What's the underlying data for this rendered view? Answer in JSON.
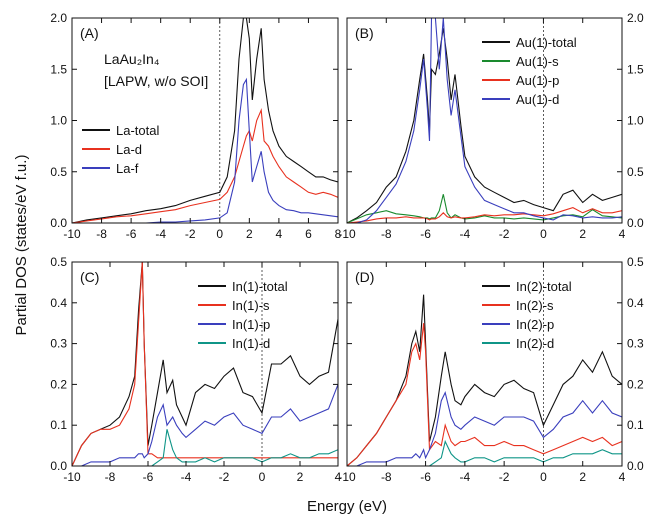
{
  "figure": {
    "ylabel": "Partial DOS (states/eV f.u.)",
    "xlabel": "Energy (eV)"
  },
  "chart_data": [
    {
      "type": "line",
      "panel_label": "(A)",
      "annotation_lines": [
        "LaAu₂In₄",
        "[LAPW, w/o SOI]"
      ],
      "xlim": [
        -10,
        8
      ],
      "ylim": [
        0,
        2.0
      ],
      "xticks": [
        "-10",
        "-8",
        "-6",
        "-4",
        "-2",
        "0",
        "2",
        "4",
        "6",
        "8"
      ],
      "yticks": [
        "0.0",
        "0.5",
        "1.0",
        "1.5",
        "2.0"
      ],
      "tick_side": "left",
      "legend_position": "middle-left",
      "fermi_level": 0,
      "x": [
        -10,
        -9,
        -8,
        -7,
        -6,
        -5,
        -4,
        -3,
        -2,
        -1,
        0,
        0.5,
        1,
        1.3,
        1.6,
        1.8,
        2,
        2.2,
        2.5,
        2.8,
        3,
        3.3,
        3.6,
        4,
        4.5,
        5,
        5.5,
        6,
        6.5,
        7,
        7.5,
        8
      ],
      "series": [
        {
          "name": "La-total",
          "color": "#111111",
          "values": [
            0.0,
            0.03,
            0.05,
            0.07,
            0.09,
            0.12,
            0.14,
            0.17,
            0.22,
            0.26,
            0.3,
            0.45,
            0.9,
            1.6,
            2.1,
            2.3,
            1.8,
            1.2,
            1.6,
            1.9,
            1.4,
            1.1,
            0.9,
            0.75,
            0.65,
            0.6,
            0.55,
            0.5,
            0.45,
            0.45,
            0.42,
            0.4
          ]
        },
        {
          "name": "La-d",
          "color": "#e8311f",
          "values": [
            0.0,
            0.02,
            0.04,
            0.06,
            0.07,
            0.09,
            0.11,
            0.13,
            0.17,
            0.2,
            0.23,
            0.3,
            0.45,
            0.6,
            0.75,
            0.85,
            0.9,
            0.8,
            1.0,
            1.1,
            0.8,
            0.75,
            0.65,
            0.55,
            0.45,
            0.4,
            0.35,
            0.3,
            0.28,
            0.3,
            0.28,
            0.25
          ]
        },
        {
          "name": "La-f",
          "color": "#3a3fbd",
          "values": [
            0.0,
            0.0,
            0.0,
            0.0,
            0.0,
            0.0,
            0.01,
            0.01,
            0.02,
            0.03,
            0.05,
            0.1,
            0.4,
            1.0,
            1.35,
            1.4,
            0.9,
            0.4,
            0.55,
            0.7,
            0.5,
            0.3,
            0.22,
            0.17,
            0.13,
            0.12,
            0.1,
            0.1,
            0.09,
            0.08,
            0.07,
            0.06
          ]
        }
      ]
    },
    {
      "type": "line",
      "panel_label": "(B)",
      "xlim": [
        -10,
        4
      ],
      "ylim": [
        0,
        2.0
      ],
      "xticks": [
        "-10",
        "-8",
        "-6",
        "-4",
        "-2",
        "0",
        "2",
        "4"
      ],
      "yticks": [
        "0.0",
        "0.5",
        "1.0",
        "1.5",
        "2.0"
      ],
      "tick_side": "right",
      "legend_position": "top-right",
      "fermi_level": 0,
      "x": [
        -10,
        -9.5,
        -9,
        -8.5,
        -8,
        -7.5,
        -7,
        -6.6,
        -6.3,
        -6.1,
        -5.9,
        -5.8,
        -5.7,
        -5.5,
        -5.3,
        -5.1,
        -4.9,
        -4.7,
        -4.5,
        -4.2,
        -4,
        -3.5,
        -3,
        -2.5,
        -2,
        -1.5,
        -1,
        -0.5,
        0,
        0.5,
        1,
        1.5,
        2,
        2.5,
        3,
        3.5,
        4
      ],
      "series": [
        {
          "name": "Au(1)-total",
          "color": "#111111",
          "values": [
            0.0,
            0.05,
            0.12,
            0.2,
            0.35,
            0.45,
            0.7,
            1.0,
            1.4,
            1.65,
            1.2,
            0.9,
            1.5,
            1.45,
            1.65,
            1.9,
            1.6,
            1.2,
            1.45,
            0.95,
            0.65,
            0.45,
            0.35,
            0.3,
            0.25,
            0.2,
            0.22,
            0.18,
            0.15,
            0.12,
            0.28,
            0.32,
            0.2,
            0.28,
            0.22,
            0.25,
            0.28
          ]
        },
        {
          "name": "Au(1)-s",
          "color": "#1a8a2e",
          "values": [
            0.0,
            0.04,
            0.08,
            0.1,
            0.12,
            0.09,
            0.08,
            0.07,
            0.06,
            0.05,
            0.05,
            0.04,
            0.05,
            0.05,
            0.12,
            0.28,
            0.1,
            0.05,
            0.08,
            0.05,
            0.04,
            0.05,
            0.07,
            0.05,
            0.05,
            0.04,
            0.05,
            0.04,
            0.03,
            0.05,
            0.07,
            0.08,
            0.06,
            0.13,
            0.07,
            0.06,
            0.05
          ]
        },
        {
          "name": "Au(1)-p",
          "color": "#e8311f",
          "values": [
            0.0,
            0.01,
            0.02,
            0.04,
            0.05,
            0.05,
            0.06,
            0.05,
            0.05,
            0.05,
            0.04,
            0.03,
            0.04,
            0.04,
            0.06,
            0.1,
            0.06,
            0.05,
            0.06,
            0.05,
            0.05,
            0.06,
            0.08,
            0.07,
            0.08,
            0.08,
            0.09,
            0.08,
            0.07,
            0.09,
            0.12,
            0.15,
            0.1,
            0.14,
            0.1,
            0.1,
            0.12
          ]
        },
        {
          "name": "Au(1)-d",
          "color": "#3a3fbd",
          "values": [
            0.0,
            0.0,
            0.03,
            0.12,
            0.25,
            0.38,
            0.6,
            0.9,
            1.3,
            1.6,
            1.1,
            0.8,
            2.0,
            2.0,
            1.5,
            2.0,
            1.4,
            1.05,
            1.3,
            0.85,
            0.55,
            0.35,
            0.22,
            0.18,
            0.14,
            0.1,
            0.1,
            0.07,
            0.05,
            0.03,
            0.08,
            0.07,
            0.05,
            0.06,
            0.05,
            0.05,
            0.06
          ]
        }
      ]
    },
    {
      "type": "line",
      "panel_label": "(C)",
      "xlim": [
        -10,
        4
      ],
      "ylim": [
        0,
        0.5
      ],
      "xticks": [
        "-10",
        "-8",
        "-6",
        "-4",
        "-2",
        "0",
        "2",
        "4"
      ],
      "yticks": [
        "0.0",
        "0.1",
        "0.2",
        "0.3",
        "0.4",
        "0.5"
      ],
      "tick_side": "left",
      "legend_position": "top-right",
      "fermi_level": 0,
      "x": [
        -10,
        -9.5,
        -9,
        -8.5,
        -8,
        -7.5,
        -7,
        -6.7,
        -6.5,
        -6.3,
        -6.2,
        -6,
        -5.8,
        -5.5,
        -5.2,
        -5,
        -4.7,
        -4.5,
        -4.2,
        -4,
        -3.5,
        -3,
        -2.5,
        -2,
        -1.5,
        -1,
        -0.5,
        0,
        0.5,
        1,
        1.5,
        2,
        2.5,
        3,
        3.5,
        4
      ],
      "series": [
        {
          "name": "In(1)-total",
          "color": "#111111",
          "values": [
            0.0,
            0.05,
            0.08,
            0.09,
            0.1,
            0.12,
            0.17,
            0.22,
            0.38,
            0.5,
            0.3,
            0.05,
            0.1,
            0.18,
            0.26,
            0.18,
            0.21,
            0.15,
            0.12,
            0.1,
            0.18,
            0.2,
            0.19,
            0.22,
            0.24,
            0.18,
            0.17,
            0.13,
            0.25,
            0.25,
            0.27,
            0.22,
            0.2,
            0.22,
            0.23,
            0.36
          ]
        },
        {
          "name": "In(1)-s",
          "color": "#e8311f",
          "values": [
            0.0,
            0.05,
            0.08,
            0.09,
            0.09,
            0.1,
            0.14,
            0.2,
            0.35,
            0.5,
            0.3,
            0.03,
            0.03,
            0.02,
            0.02,
            0.02,
            0.02,
            0.02,
            0.02,
            0.02,
            0.02,
            0.02,
            0.02,
            0.02,
            0.02,
            0.02,
            0.02,
            0.02,
            0.02,
            0.02,
            0.02,
            0.02,
            0.02,
            0.02,
            0.02,
            0.02
          ]
        },
        {
          "name": "In(1)-p",
          "color": "#3a3fbd",
          "values": [
            0.0,
            0.0,
            0.01,
            0.01,
            0.01,
            0.02,
            0.02,
            0.02,
            0.03,
            0.03,
            0.02,
            0.03,
            0.06,
            0.12,
            0.15,
            0.1,
            0.12,
            0.1,
            0.08,
            0.07,
            0.09,
            0.11,
            0.1,
            0.12,
            0.13,
            0.1,
            0.09,
            0.08,
            0.12,
            0.12,
            0.14,
            0.11,
            0.12,
            0.13,
            0.14,
            0.2
          ]
        },
        {
          "name": "In(1)-d",
          "color": "#0f9587",
          "values": [
            0.0,
            0.0,
            0.0,
            0.0,
            0.0,
            0.0,
            0.0,
            0.0,
            0.0,
            0.0,
            0.0,
            0.0,
            0.0,
            0.01,
            0.02,
            0.09,
            0.04,
            0.02,
            0.01,
            0.01,
            0.01,
            0.02,
            0.01,
            0.02,
            0.02,
            0.02,
            0.02,
            0.01,
            0.02,
            0.02,
            0.03,
            0.02,
            0.02,
            0.03,
            0.03,
            0.04
          ]
        }
      ]
    },
    {
      "type": "line",
      "panel_label": "(D)",
      "xlim": [
        -10,
        4
      ],
      "ylim": [
        0,
        0.5
      ],
      "xticks": [
        "-10",
        "-8",
        "-6",
        "-4",
        "-2",
        "0",
        "2",
        "4"
      ],
      "yticks": [
        "0.0",
        "0.1",
        "0.2",
        "0.3",
        "0.4",
        "0.5"
      ],
      "tick_side": "right",
      "legend_position": "top-right",
      "fermi_level": 0,
      "x": [
        -10,
        -9.5,
        -9,
        -8.5,
        -8,
        -7.5,
        -7,
        -6.7,
        -6.5,
        -6.3,
        -6.1,
        -6,
        -5.8,
        -5.5,
        -5.2,
        -5,
        -4.7,
        -4.5,
        -4.2,
        -4,
        -3.5,
        -3,
        -2.5,
        -2,
        -1.5,
        -1,
        -0.5,
        0,
        0.5,
        1,
        1.5,
        2,
        2.5,
        3,
        3.5,
        4
      ],
      "series": [
        {
          "name": "In(2)-total",
          "color": "#111111",
          "values": [
            0.0,
            0.02,
            0.05,
            0.08,
            0.12,
            0.16,
            0.22,
            0.3,
            0.33,
            0.28,
            0.42,
            0.3,
            0.06,
            0.12,
            0.22,
            0.28,
            0.2,
            0.16,
            0.15,
            0.17,
            0.2,
            0.18,
            0.17,
            0.2,
            0.21,
            0.19,
            0.18,
            0.1,
            0.15,
            0.2,
            0.22,
            0.26,
            0.23,
            0.28,
            0.22,
            0.2
          ]
        },
        {
          "name": "In(2)-s",
          "color": "#e8311f",
          "values": [
            0.0,
            0.02,
            0.05,
            0.08,
            0.12,
            0.16,
            0.2,
            0.28,
            0.3,
            0.26,
            0.35,
            0.28,
            0.04,
            0.06,
            0.05,
            0.1,
            0.06,
            0.05,
            0.06,
            0.06,
            0.07,
            0.05,
            0.05,
            0.06,
            0.05,
            0.05,
            0.04,
            0.03,
            0.04,
            0.05,
            0.06,
            0.07,
            0.06,
            0.07,
            0.05,
            0.06
          ]
        },
        {
          "name": "In(2)-p",
          "color": "#3a3fbd",
          "values": [
            0.0,
            0.0,
            0.01,
            0.01,
            0.01,
            0.02,
            0.02,
            0.02,
            0.03,
            0.02,
            0.04,
            0.02,
            0.04,
            0.08,
            0.16,
            0.18,
            0.12,
            0.1,
            0.09,
            0.1,
            0.12,
            0.11,
            0.1,
            0.12,
            0.12,
            0.12,
            0.11,
            0.07,
            0.09,
            0.12,
            0.13,
            0.16,
            0.13,
            0.16,
            0.13,
            0.12
          ]
        },
        {
          "name": "In(2)-d",
          "color": "#0f9587",
          "values": [
            0.0,
            0.0,
            0.0,
            0.0,
            0.0,
            0.0,
            0.0,
            0.0,
            0.0,
            0.0,
            0.0,
            0.0,
            0.0,
            0.01,
            0.02,
            0.06,
            0.03,
            0.02,
            0.01,
            0.01,
            0.02,
            0.02,
            0.01,
            0.02,
            0.02,
            0.02,
            0.02,
            0.01,
            0.02,
            0.02,
            0.03,
            0.03,
            0.03,
            0.04,
            0.03,
            0.03
          ]
        }
      ]
    }
  ]
}
